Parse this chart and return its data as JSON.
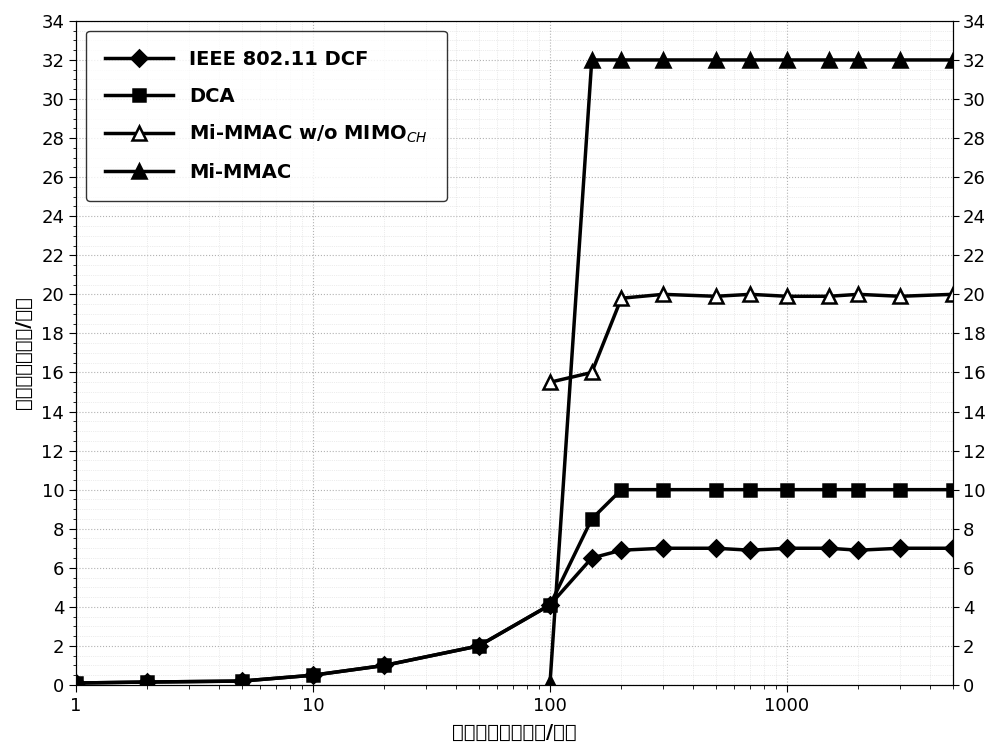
{
  "xlabel": "分组到达速率（包/秒）",
  "ylabel": "吞吐量（兆比特/秒）",
  "xlim": [
    1,
    5000
  ],
  "ylim": [
    0,
    34
  ],
  "yticks": [
    0,
    2,
    4,
    6,
    8,
    10,
    12,
    14,
    16,
    18,
    20,
    22,
    24,
    26,
    28,
    30,
    32,
    34
  ],
  "xticks_major": [
    1,
    10,
    100,
    1000
  ],
  "background_color": "#ffffff",
  "series": [
    {
      "label": "IEEE 802.11 DCF",
      "x": [
        1,
        2,
        5,
        10,
        20,
        50,
        100,
        150,
        200,
        300,
        500,
        700,
        1000,
        1500,
        2000,
        3000,
        5000
      ],
      "y": [
        0.1,
        0.15,
        0.2,
        0.5,
        1.0,
        2.0,
        4.1,
        6.5,
        6.9,
        7.0,
        7.0,
        6.9,
        7.0,
        7.0,
        6.9,
        7.0,
        7.0
      ],
      "color": "#000000",
      "marker": "D",
      "marker_size": 8,
      "marker_face": "#000000",
      "linewidth": 2.5
    },
    {
      "label": "DCA",
      "x": [
        1,
        2,
        5,
        10,
        20,
        50,
        100,
        150,
        200,
        300,
        500,
        700,
        1000,
        1500,
        2000,
        3000,
        5000
      ],
      "y": [
        0.1,
        0.15,
        0.2,
        0.5,
        1.0,
        2.0,
        4.1,
        8.5,
        10.0,
        10.0,
        10.0,
        10.0,
        10.0,
        10.0,
        10.0,
        10.0,
        10.0
      ],
      "color": "#000000",
      "marker": "s",
      "marker_size": 8,
      "marker_face": "#000000",
      "linewidth": 2.5
    },
    {
      "label": "Mi-MMAC w/o MIMO$_{CH}$",
      "x": [
        100,
        150,
        200,
        300,
        500,
        700,
        1000,
        1500,
        2000,
        3000,
        5000
      ],
      "y": [
        15.5,
        16.0,
        19.8,
        20.0,
        19.9,
        20.0,
        19.9,
        19.9,
        20.0,
        19.9,
        20.0
      ],
      "color": "#000000",
      "marker": "^",
      "marker_size": 10,
      "marker_face": "#ffffff",
      "linewidth": 2.5
    },
    {
      "label": "Mi-MMAC",
      "x": [
        100,
        150,
        200,
        300,
        500,
        700,
        1000,
        1500,
        2000,
        3000,
        5000
      ],
      "y": [
        0.1,
        32.0,
        32.0,
        32.0,
        32.0,
        32.0,
        32.0,
        32.0,
        32.0,
        32.0,
        32.0
      ],
      "color": "#000000",
      "marker": "^",
      "marker_size": 10,
      "marker_face": "#000000",
      "linewidth": 2.5
    }
  ],
  "legend_fontsize": 14,
  "axis_fontsize": 14,
  "tick_fontsize": 13
}
